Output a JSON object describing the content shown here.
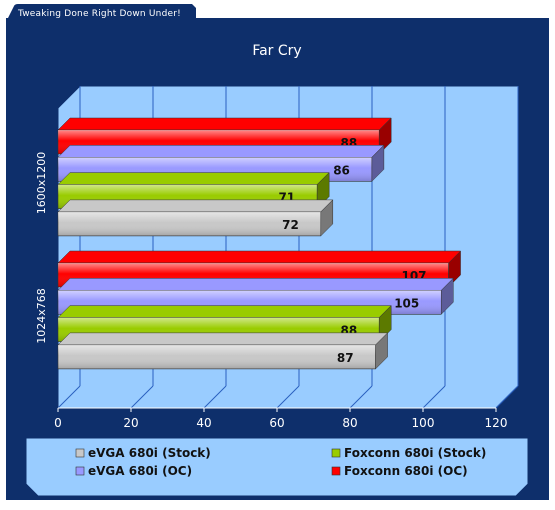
{
  "header": {
    "tab_text": "Tweaking Done Right Down Under!"
  },
  "colors": {
    "frame": "#0e2f6b",
    "plot_background": "#99ccff",
    "text": "#ffffff",
    "series": [
      "#c8c8c8",
      "#99cc00",
      "#9999ff",
      "#ff0000"
    ]
  },
  "chart_data": {
    "type": "bar",
    "orientation": "horizontal",
    "title": "Far Cry",
    "categories": [
      "1600x1200",
      "1024x768"
    ],
    "series": [
      {
        "name": "eVGA 680i (Stock)",
        "values": [
          72,
          87
        ]
      },
      {
        "name": "Foxconn 680i (Stock)",
        "values": [
          71,
          88
        ]
      },
      {
        "name": "eVGA 680i (OC)",
        "values": [
          86,
          105
        ]
      },
      {
        "name": "Foxconn 680i (OC)",
        "values": [
          88,
          107
        ]
      }
    ],
    "xlim": [
      0,
      120
    ],
    "x_ticks": [
      "0",
      "20",
      "40",
      "60",
      "80",
      "100",
      "120"
    ],
    "grid": true,
    "data_labels": true,
    "legend_position": "bottom"
  }
}
